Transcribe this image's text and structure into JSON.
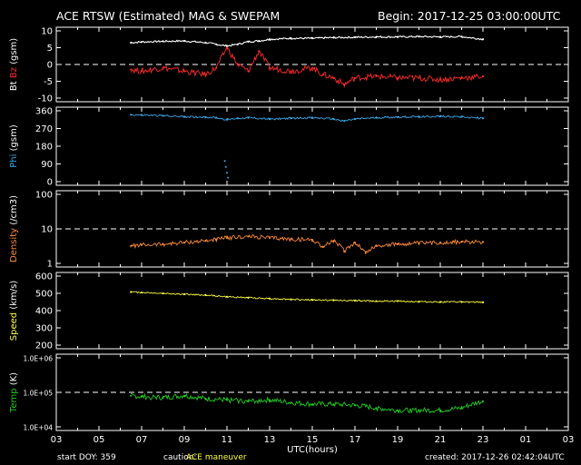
{
  "header": {
    "title": "ACE RTSW (Estimated) MAG & SWEPAM",
    "begin": "Begin: 2017-12-25 03:00:00UTC"
  },
  "footer": {
    "start_doy": "start DOY: 359",
    "caution_label": "caution:",
    "caution_text": "ACE maneuver",
    "created": "created: 2017-12-26 02:42:04UTC"
  },
  "colors": {
    "bt": "#ffffff",
    "bz": "#ff2a2a",
    "phi": "#3aa8e8",
    "density": "#ff8a3a",
    "speed": "#ffff40",
    "temp": "#22cc22",
    "caution": "#ffff40",
    "axes": "#ffffff"
  },
  "chart_data": [
    {
      "type": "line",
      "ylabel_parts": [
        "Bt",
        "Bz",
        "(gsm)"
      ],
      "ylim": [
        -10,
        10
      ],
      "yticks": [
        "10",
        "5",
        "0",
        "-5",
        "-10"
      ],
      "ytick_values": [
        10,
        5,
        0,
        -5,
        -10
      ],
      "reference_line": 0,
      "series": [
        {
          "name": "Bt",
          "x": [
            6.5,
            7,
            8,
            9,
            10,
            10.5,
            11,
            11.5,
            12,
            12.5,
            13,
            14,
            15,
            16,
            17,
            18,
            19,
            20,
            21,
            22,
            23
          ],
          "values": [
            6.5,
            6.7,
            6.9,
            7,
            6.5,
            6,
            5.5,
            6,
            6.8,
            7,
            7.5,
            7.8,
            7.8,
            8,
            8.1,
            8.2,
            8.2,
            8.3,
            8.2,
            8.3,
            7.5
          ]
        },
        {
          "name": "Bz",
          "x": [
            6.5,
            7,
            8,
            9,
            10,
            10.5,
            11,
            11.5,
            12,
            12.5,
            13,
            14,
            15,
            15.5,
            16,
            16.5,
            17,
            18,
            19,
            20,
            21,
            22,
            23
          ],
          "values": [
            -1.5,
            -2,
            -1,
            -2,
            -3,
            -1,
            5,
            0,
            -2,
            4,
            -1,
            -2,
            -1,
            -3,
            -4,
            -6,
            -4,
            -3.5,
            -4,
            -4,
            -4.5,
            -4,
            -3.5
          ]
        }
      ]
    },
    {
      "type": "scatter",
      "ylabel_parts": [
        "Phi",
        "(gsm)"
      ],
      "ylim": [
        0,
        360
      ],
      "yticks": [
        "360",
        "270",
        "180",
        "90",
        "0"
      ],
      "ytick_values": [
        360,
        270,
        180,
        90,
        0
      ],
      "series": [
        {
          "name": "Phi",
          "x": [
            6.5,
            7,
            8,
            9,
            10,
            10.5,
            11,
            11.5,
            12,
            13,
            14,
            15,
            16,
            16.5,
            17,
            18,
            19,
            20,
            21,
            22,
            23
          ],
          "values": [
            340,
            338,
            335,
            330,
            328,
            325,
            315,
            322,
            325,
            318,
            322,
            325,
            318,
            308,
            318,
            325,
            328,
            330,
            332,
            330,
            322
          ]
        },
        {
          "name": "Phi-outliers",
          "x": [
            10.9,
            10.95,
            11.0,
            11.05
          ],
          "values": [
            105,
            75,
            45,
            20
          ]
        }
      ]
    },
    {
      "type": "line",
      "scale": "log",
      "ylabel_parts": [
        "Density",
        "(/cm3)"
      ],
      "ylim": [
        1,
        100
      ],
      "yticks": [
        "100",
        "10",
        "1"
      ],
      "ytick_values": [
        100,
        10,
        1
      ],
      "reference_line": 10,
      "series": [
        {
          "name": "Density",
          "x": [
            6.5,
            7,
            8,
            9,
            10,
            10.5,
            11,
            12,
            13,
            14,
            15,
            15.5,
            16,
            16.5,
            17,
            17.5,
            18,
            19,
            20,
            21,
            22,
            23
          ],
          "values": [
            3.2,
            3.4,
            3.6,
            4,
            4.5,
            5,
            5.5,
            6,
            5.5,
            5,
            4.8,
            3,
            4.5,
            2.2,
            4,
            2,
            3.2,
            3.6,
            3.8,
            4,
            4.2,
            4.2
          ]
        }
      ]
    },
    {
      "type": "line",
      "ylabel_parts": [
        "Speed",
        "(km/s)"
      ],
      "ylim": [
        200,
        600
      ],
      "yticks": [
        "600",
        "500",
        "400",
        "300",
        "200"
      ],
      "ytick_values": [
        600,
        500,
        400,
        300,
        200
      ],
      "series": [
        {
          "name": "Speed",
          "x": [
            6.5,
            7,
            8,
            9,
            10,
            11,
            12,
            13,
            14,
            15,
            16,
            17,
            18,
            19,
            20,
            21,
            22,
            23
          ],
          "values": [
            508,
            505,
            500,
            495,
            490,
            480,
            475,
            470,
            465,
            462,
            460,
            458,
            455,
            455,
            452,
            450,
            450,
            448
          ]
        }
      ]
    },
    {
      "type": "scatter",
      "scale": "log",
      "ylabel_parts": [
        "Temp",
        "(K)"
      ],
      "ylim": [
        10000,
        1000000
      ],
      "yticks": [
        "1.0E+06",
        "1.0E+05",
        "1.0E+04"
      ],
      "ytick_values": [
        1000000,
        100000,
        10000
      ],
      "reference_line": 100000,
      "series": [
        {
          "name": "Temp",
          "x": [
            6.5,
            7,
            8,
            9,
            10,
            11,
            12,
            13,
            14,
            15,
            16,
            17,
            18,
            19,
            20,
            21,
            22,
            23
          ],
          "values": [
            80000,
            75000,
            70000,
            80000,
            65000,
            60000,
            55000,
            60000,
            50000,
            45000,
            45000,
            42000,
            35000,
            30000,
            30000,
            30000,
            35000,
            55000
          ]
        }
      ]
    }
  ],
  "x_axis": {
    "label": "UTC(hours)",
    "ticks": [
      "03",
      "05",
      "07",
      "09",
      "11",
      "13",
      "15",
      "17",
      "19",
      "21",
      "23",
      "01",
      "03"
    ],
    "range_hours": [
      3,
      27
    ]
  }
}
